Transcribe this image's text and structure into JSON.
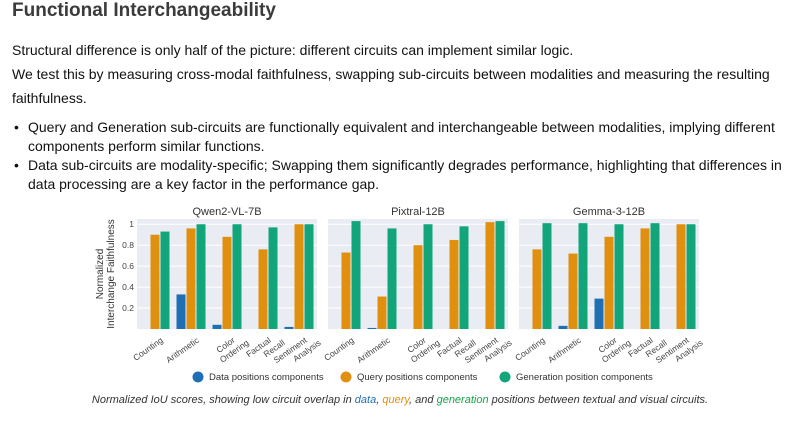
{
  "heading": "Functional Interchangeability",
  "paragraphs": [
    "Structural difference is only half of the picture: different circuits can implement similar logic.",
    "We test this by measuring cross-modal faithfulness, swapping sub-circuits between modalities and measuring the resulting faithfulness."
  ],
  "bullets": [
    "Query and Generation sub-circuits are functionally equivalent and interchangeable between modalities, implying different components perform similar functions.",
    "Data sub-circuits are modality-specific; Swapping them significantly degrades performance, highlighting that differences in data processing are a key factor in the performance gap."
  ],
  "caption": {
    "prefix": "Normalized IoU scores, showing low circuit overlap in ",
    "data": "data",
    "sep1": ", ",
    "query": "query",
    "sep2": ", and ",
    "generation": "generation",
    "suffix": " positions between textual and visual circuits."
  },
  "colors": {
    "data": "#1f6fb5",
    "query": "#e0900e",
    "generation": "#11a579",
    "panel_bg": "#e9ecf2"
  },
  "chart_data": {
    "type": "bar",
    "ylabel": "Normalized\nInterchange Faithfulness",
    "yticks": [
      "0.2",
      "0.4",
      "0.6",
      "0.8",
      "1"
    ],
    "ylim": [
      0,
      1.05
    ],
    "categories": [
      "Counting",
      "Arithmetic",
      "Color\nOrdering",
      "Factual\nRecall",
      "Sentiment\nAnalysis"
    ],
    "legend": [
      "Data positions components",
      "Query positions components",
      "Generation position components"
    ],
    "legend_position": "bottom",
    "panels": [
      {
        "title": "Qwen2-VL-7B",
        "series": [
          {
            "name": "Data positions components",
            "values": [
              0,
              0.33,
              0.04,
              0,
              0.02
            ]
          },
          {
            "name": "Query positions components",
            "values": [
              0.9,
              0.96,
              0.88,
              0.76,
              1.0
            ]
          },
          {
            "name": "Generation position components",
            "values": [
              0.93,
              1.0,
              1.0,
              0.97,
              1.0
            ]
          }
        ]
      },
      {
        "title": "Pixtral-12B",
        "series": [
          {
            "name": "Data positions components",
            "values": [
              0,
              0.01,
              0,
              0,
              0
            ]
          },
          {
            "name": "Query positions components",
            "values": [
              0.73,
              0.31,
              0.8,
              0.85,
              1.02
            ]
          },
          {
            "name": "Generation position components",
            "values": [
              1.03,
              0.96,
              1.0,
              0.98,
              1.03
            ]
          }
        ]
      },
      {
        "title": "Gemma-3-12B",
        "series": [
          {
            "name": "Data positions components",
            "values": [
              0,
              0.03,
              0.29,
              0,
              0
            ]
          },
          {
            "name": "Query positions components",
            "values": [
              0.76,
              0.72,
              0.88,
              0.96,
              1.0
            ]
          },
          {
            "name": "Generation position components",
            "values": [
              1.01,
              1.01,
              1.0,
              1.01,
              1.0
            ]
          }
        ]
      }
    ]
  }
}
